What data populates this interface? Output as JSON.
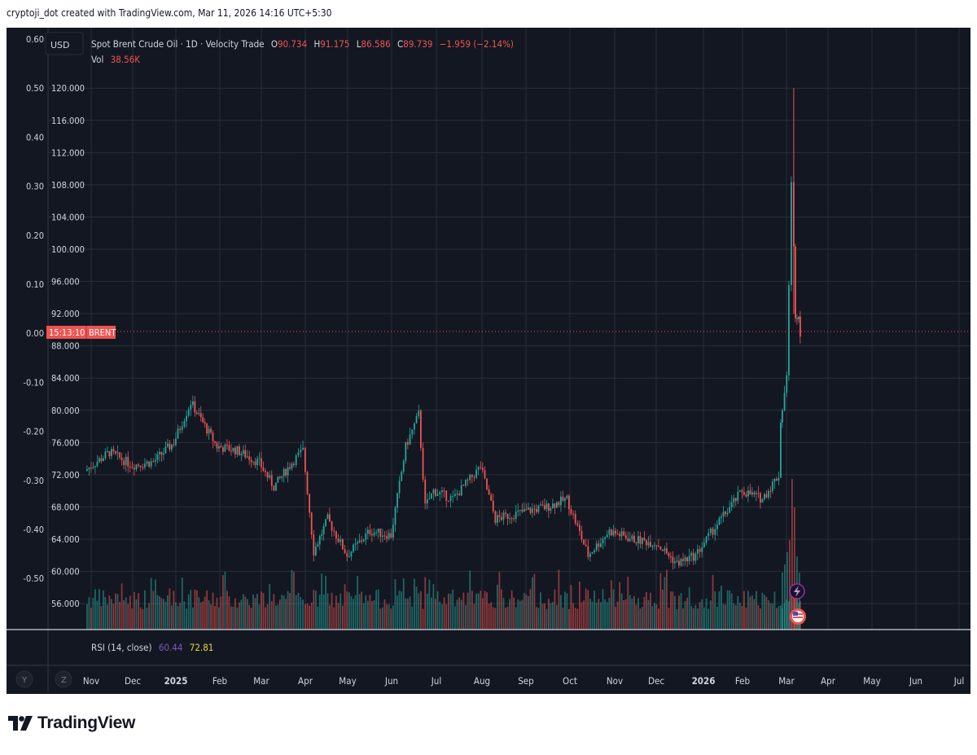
{
  "header": {
    "credit": "cryptoji_dot created with TradingView.com, Mar 11, 2026 14:16 UTC+5:30"
  },
  "legend": {
    "currency": "USD",
    "symbol": "Spot Brent Crude Oil · 1D · Velocity Trade",
    "o_label": "O",
    "o_value": "90.734",
    "h_label": "H",
    "h_value": "91.175",
    "l_label": "L",
    "l_value": "86.586",
    "c_label": "C",
    "c_value": "89.739",
    "change": "−1.959 (−2.14%)",
    "vol_label": "Vol",
    "vol_value": "38.56K"
  },
  "price_tag": {
    "time": "15:13:10",
    "symbol": "BRENT"
  },
  "rsi": {
    "label": "RSI (14, close)",
    "value1": "60.44",
    "value2": "72.81"
  },
  "bottom_buttons": {
    "y": "Y",
    "z": "Z"
  },
  "brand": {
    "name": "TradingView"
  },
  "colors": {
    "background": "#131722",
    "grid": "#2a2e39",
    "up": "#26a69a",
    "down": "#ef5350",
    "text": "#d1d4dc",
    "rsi_purple": "#7e57c2",
    "rsi_yellow": "#e6d53c"
  },
  "chart_data": {
    "type": "candlestick",
    "title": "Spot Brent Crude Oil · 1D · Velocity Trade",
    "y_axis_price": {
      "ticks": [
        "56.000",
        "60.000",
        "64.000",
        "68.000",
        "72.000",
        "76.000",
        "80.000",
        "84.000",
        "88.000",
        "92.000",
        "96.000",
        "100.000",
        "104.000",
        "108.000",
        "112.000",
        "116.000",
        "120.000"
      ],
      "range": [
        53,
        124
      ]
    },
    "y_axis_left": {
      "ticks": [
        "0.60",
        "0.50",
        "0.40",
        "0.30",
        "0.20",
        "0.10",
        "0.00",
        "-0.10",
        "-0.20",
        "-0.30",
        "-0.40",
        "-0.50"
      ]
    },
    "x_axis": {
      "ticks": [
        {
          "label": "Nov",
          "bold": false
        },
        {
          "label": "Dec",
          "bold": false
        },
        {
          "label": "2025",
          "bold": true
        },
        {
          "label": "Feb",
          "bold": false
        },
        {
          "label": "Mar",
          "bold": false
        },
        {
          "label": "Apr",
          "bold": false
        },
        {
          "label": "May",
          "bold": false
        },
        {
          "label": "Jun",
          "bold": false
        },
        {
          "label": "Jul",
          "bold": false
        },
        {
          "label": "Aug",
          "bold": false
        },
        {
          "label": "Sep",
          "bold": false
        },
        {
          "label": "Oct",
          "bold": false
        },
        {
          "label": "Nov",
          "bold": false
        },
        {
          "label": "Dec",
          "bold": false
        },
        {
          "label": "2026",
          "bold": true
        },
        {
          "label": "Feb",
          "bold": false
        },
        {
          "label": "Mar",
          "bold": false
        },
        {
          "label": "Apr",
          "bold": false
        },
        {
          "label": "May",
          "bold": false
        },
        {
          "label": "Jun",
          "bold": false
        },
        {
          "label": "Jul",
          "bold": false
        }
      ]
    },
    "close_path": [
      [
        "Nov 2024",
        72.5
      ],
      [
        "mid Nov 2024",
        74.8
      ],
      [
        "Dec 2024",
        73.2
      ],
      [
        "mid Dec 2024",
        73.6
      ],
      [
        "2025",
        76.0
      ],
      [
        "mid Jan 2025",
        81.0
      ],
      [
        "Feb 2025",
        75.5
      ],
      [
        "mid Feb 2025",
        75.0
      ],
      [
        "Mar 2025",
        73.5
      ],
      [
        "mid Mar 2025",
        70.5
      ],
      [
        "end Mar 2025",
        73.5
      ],
      [
        "Apr 2025",
        75.0
      ],
      [
        "early Apr 2025",
        62.5
      ],
      [
        "mid Apr 2025",
        66.5
      ],
      [
        "May 2025",
        62.0
      ],
      [
        "mid May 2025",
        65.0
      ],
      [
        "Jun 2025",
        64.5
      ],
      [
        "mid Jun 2025",
        75.5
      ],
      [
        "late Jun 2025",
        79.5
      ],
      [
        "end Jun 2025",
        68.0
      ],
      [
        "Jul 2025",
        70.0
      ],
      [
        "mid Jul 2025",
        69.0
      ],
      [
        "Aug 2025",
        73.0
      ],
      [
        "mid Aug 2025",
        66.5
      ],
      [
        "Sep 2025",
        67.5
      ],
      [
        "mid Sep 2025",
        68.0
      ],
      [
        "Oct 2025",
        69.0
      ],
      [
        "mid Oct 2025",
        62.0
      ],
      [
        "Nov 2025",
        65.0
      ],
      [
        "mid Nov 2025",
        64.0
      ],
      [
        "Dec 2025",
        63.5
      ],
      [
        "mid Dec 2025",
        61.0
      ],
      [
        "2026",
        62.0
      ],
      [
        "mid Jan 2026",
        65.5
      ],
      [
        "Feb 2026",
        70.0
      ],
      [
        "mid Feb 2026",
        69.0
      ],
      [
        "Mar 1 2026",
        72.0
      ],
      [
        "Mar 2 2026",
        78.5
      ],
      [
        "Mar 5 2026",
        84.0
      ],
      [
        "Mar 8 2026",
        108.0
      ],
      [
        "Mar 9 2026",
        92.0
      ],
      [
        "Mar 10 2026",
        91.7
      ],
      [
        "Mar 11 2026",
        89.739
      ]
    ],
    "spike_high": 120.0,
    "last": {
      "open": 90.734,
      "high": 91.175,
      "low": 86.586,
      "close": 89.739
    },
    "volume_last": "38.56K",
    "rsi": {
      "period": 14,
      "values": [
        60.44,
        72.81
      ]
    }
  }
}
